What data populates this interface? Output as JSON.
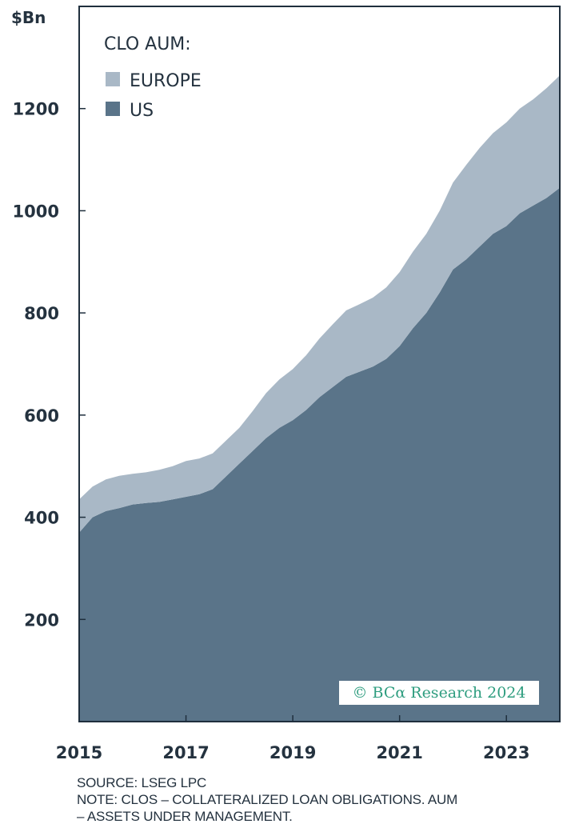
{
  "chart_data": {
    "type": "area",
    "stacked": true,
    "unit_label": "$Bn",
    "legend_title": "CLO AUM:",
    "legend_position": "top-left",
    "xlim": [
      2015.0,
      2024.0
    ],
    "ylim": [
      0,
      1400
    ],
    "yticks": [
      200,
      400,
      600,
      800,
      1000,
      1200
    ],
    "xticks": [
      2015,
      2017,
      2019,
      2021,
      2023
    ],
    "grid": false,
    "x": [
      2015.0,
      2015.25,
      2015.5,
      2015.75,
      2016.0,
      2016.25,
      2016.5,
      2016.75,
      2017.0,
      2017.25,
      2017.5,
      2017.75,
      2018.0,
      2018.25,
      2018.5,
      2018.75,
      2019.0,
      2019.25,
      2019.5,
      2019.75,
      2020.0,
      2020.25,
      2020.5,
      2020.75,
      2021.0,
      2021.25,
      2021.5,
      2021.75,
      2022.0,
      2022.25,
      2022.5,
      2022.75,
      2023.0,
      2023.25,
      2023.5,
      2023.75,
      2024.0
    ],
    "series": [
      {
        "name": "US",
        "color": "#5a7489",
        "values": [
          370,
          400,
          412,
          418,
          425,
          428,
          430,
          435,
          440,
          445,
          455,
          480,
          505,
          530,
          555,
          575,
          590,
          610,
          635,
          655,
          675,
          685,
          695,
          710,
          735,
          770,
          800,
          840,
          885,
          905,
          930,
          955,
          970,
          995,
          1010,
          1025,
          1045
        ]
      },
      {
        "name": "EUROPE",
        "color": "#a9b8c6",
        "values": [
          65,
          60,
          62,
          63,
          60,
          60,
          63,
          65,
          70,
          70,
          70,
          70,
          70,
          78,
          88,
          95,
          100,
          107,
          115,
          123,
          130,
          132,
          135,
          140,
          145,
          150,
          155,
          160,
          170,
          185,
          193,
          197,
          203,
          205,
          208,
          215,
          220
        ]
      }
    ],
    "source": "SOURCE: LSEG LPC",
    "note_line1": "NOTE: CLOS – COLLATERALIZED LOAN OBLIGATIONS. AUM",
    "note_line2": "– ASSETS UNDER MANAGEMENT.",
    "watermark": "© BCα Research 2024"
  }
}
